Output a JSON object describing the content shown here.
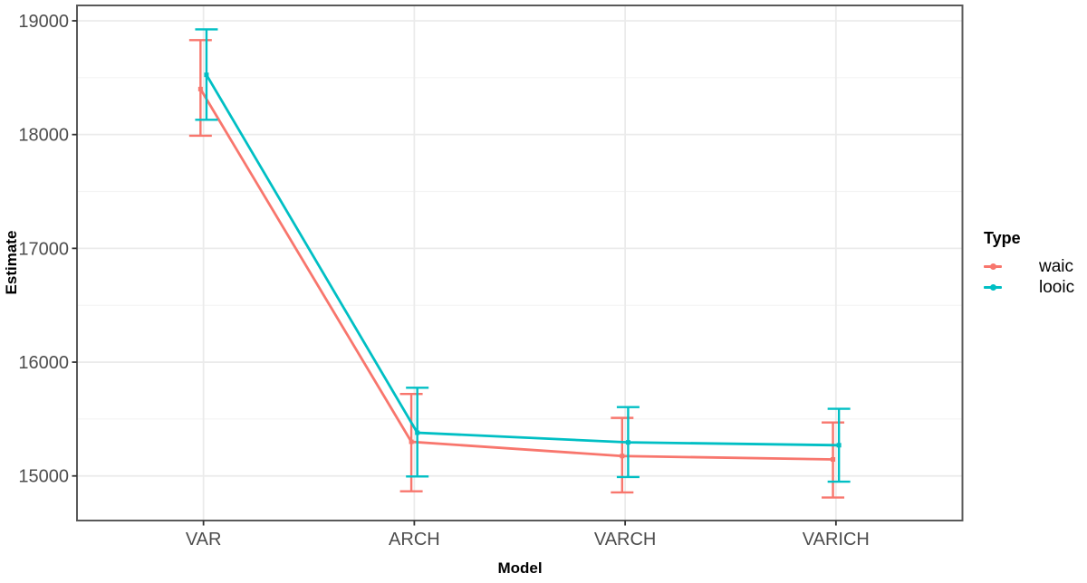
{
  "chart_data": {
    "type": "line",
    "title": "",
    "xlabel": "Model",
    "ylabel": "Estimate",
    "categories": [
      "VAR",
      "ARCH",
      "VARCH",
      "VARICH"
    ],
    "y_ticks": [
      15000,
      16000,
      17000,
      18000,
      19000
    ],
    "y_minor_ticks": [
      15500,
      16500,
      17500,
      18500
    ],
    "ylim": [
      14608,
      19135
    ],
    "grid": true,
    "legend": {
      "title": "Type",
      "position": "right"
    },
    "series": [
      {
        "name": "waic",
        "color": "#F8766D",
        "values": [
          18400,
          15300,
          15175,
          15145
        ],
        "lower": [
          17990,
          14865,
          14855,
          14810
        ],
        "upper": [
          18830,
          15720,
          15510,
          15470
        ]
      },
      {
        "name": "looic",
        "color": "#00BFC4",
        "values": [
          18525,
          15380,
          15295,
          15270
        ],
        "lower": [
          18130,
          14995,
          14990,
          14950
        ],
        "upper": [
          18925,
          15775,
          15605,
          15590
        ]
      }
    ],
    "style": {
      "background": "#FFFFFF",
      "grid_major": "#EBEBEB",
      "grid_minor": "#F4F4F4",
      "panel_border": "#595959",
      "tick_color": "#333333",
      "tick_label_color": "#4D4D4D",
      "axis_title_color": "#000000"
    }
  }
}
